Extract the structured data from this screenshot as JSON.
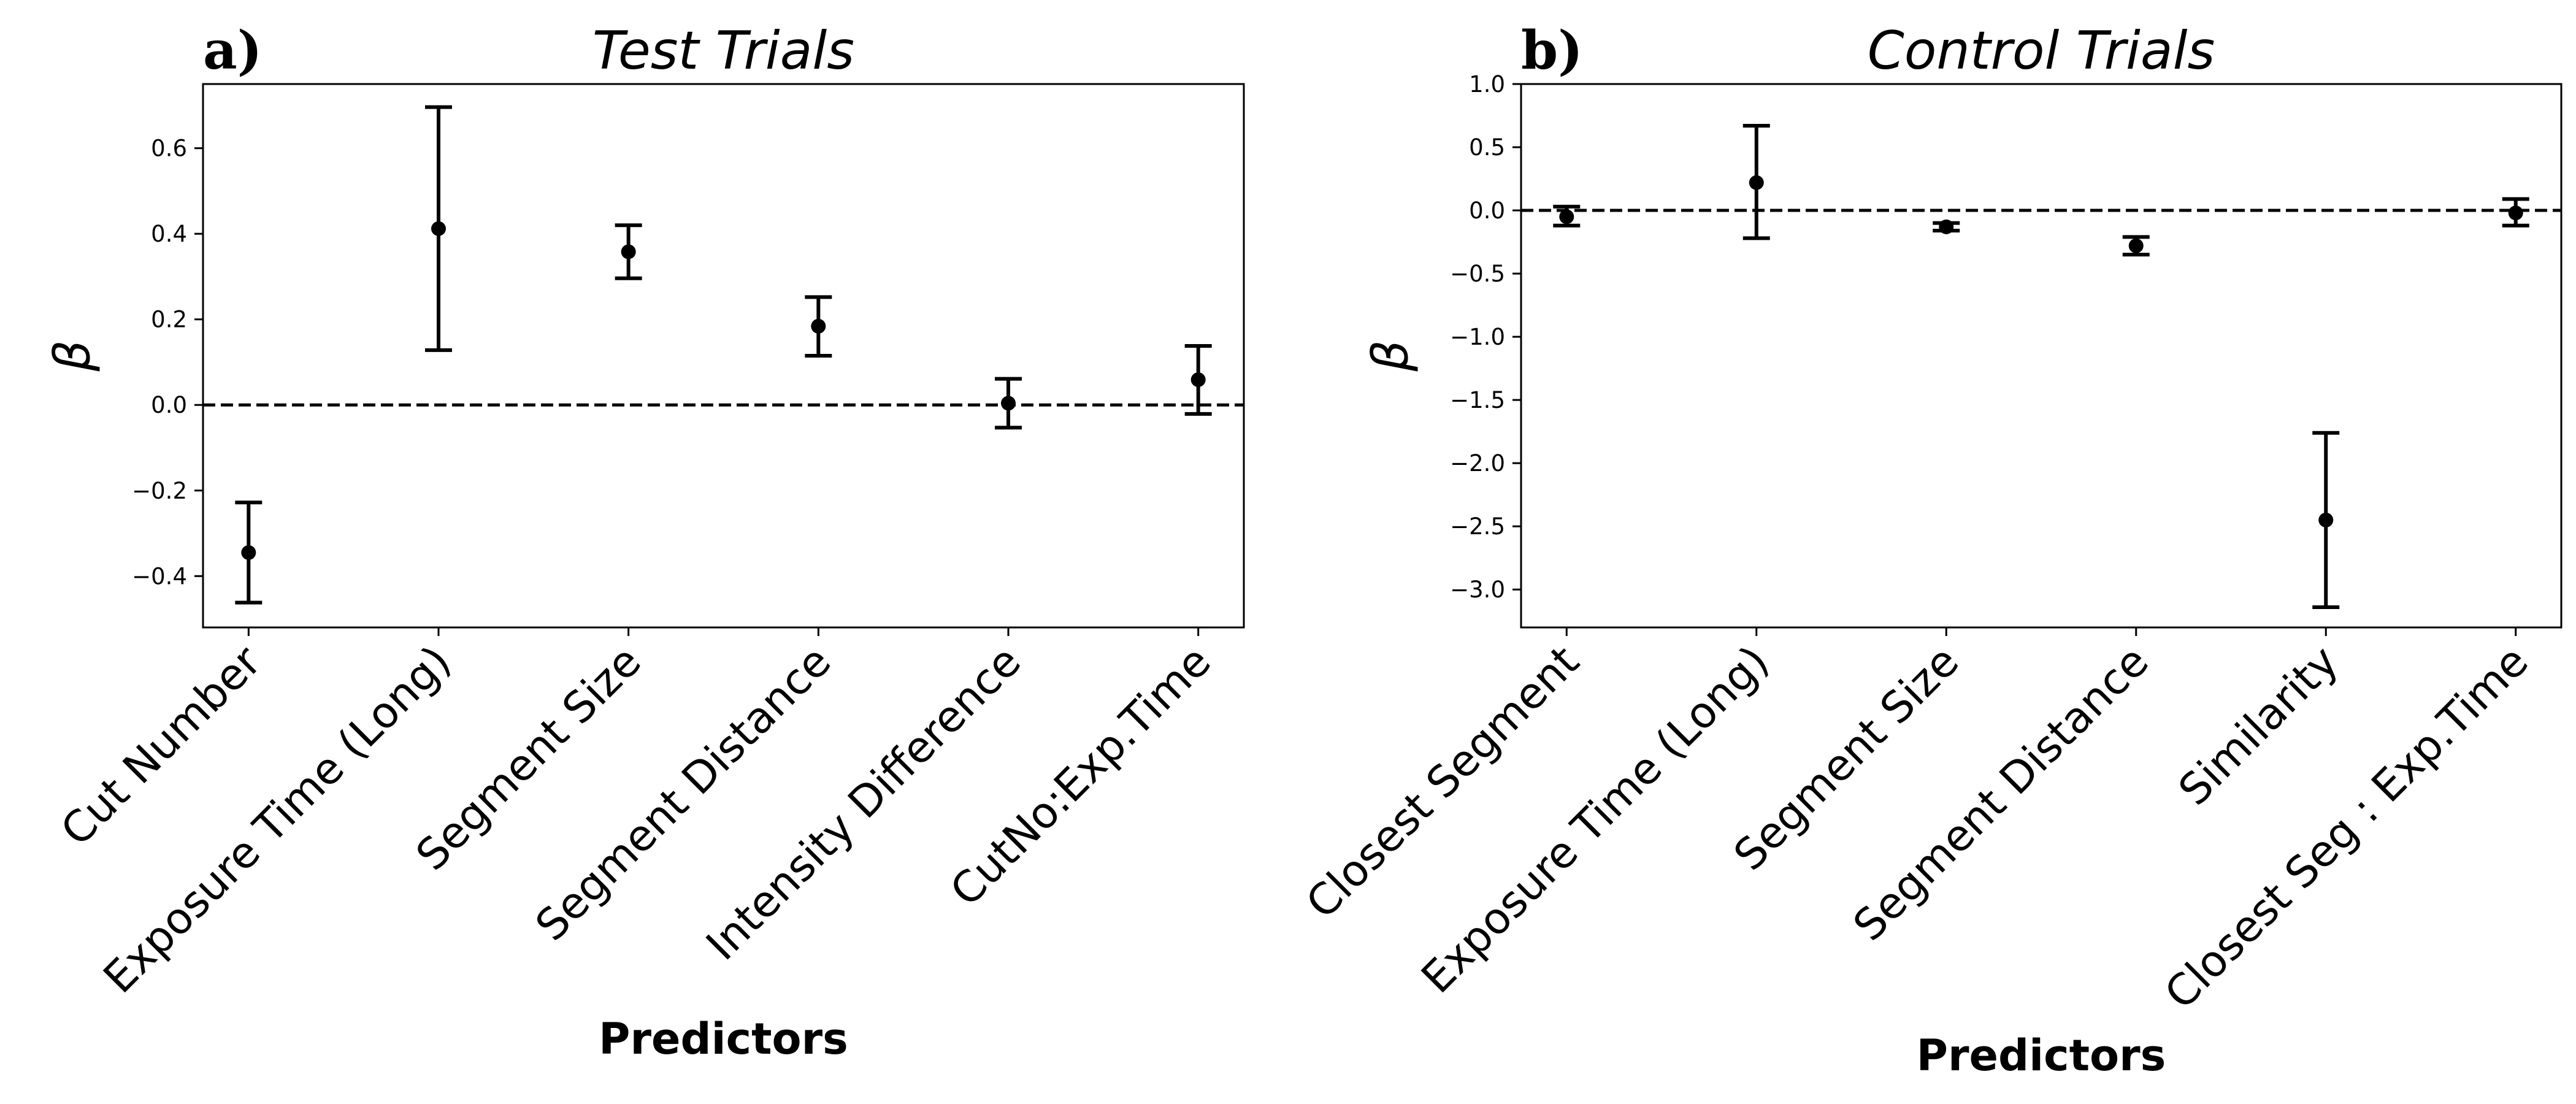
{
  "chart_data": [
    {
      "type": "errorbar",
      "panel_label": "a)",
      "title": "Test Trials",
      "xlabel": "Predictors",
      "ylabel": "β",
      "ylim": [
        -0.52,
        0.75
      ],
      "yticks": [
        -0.4,
        -0.2,
        0.0,
        0.2,
        0.4,
        0.6
      ],
      "ytick_labels": [
        "−0.4",
        "−0.2",
        "0.0",
        "0.2",
        "0.4",
        "0.6"
      ],
      "reference_line": 0.0,
      "categories": [
        "Cut Number",
        "Exposure Time (Long)",
        "Segment Size",
        "Segment Distance",
        "Intensity Difference",
        "CutNo:Exp.Time"
      ],
      "values": [
        -0.345,
        0.412,
        0.358,
        0.184,
        0.004,
        0.059
      ],
      "lower": [
        -0.462,
        0.128,
        0.296,
        0.115,
        -0.053,
        -0.021
      ],
      "upper": [
        -0.228,
        0.696,
        0.42,
        0.252,
        0.061,
        0.138
      ],
      "grid": false
    },
    {
      "type": "errorbar",
      "panel_label": "b)",
      "title": "Control Trials",
      "xlabel": "Predictors",
      "ylabel": "β",
      "ylim": [
        -3.3,
        1.0
      ],
      "yticks": [
        -3.0,
        -2.5,
        -2.0,
        -1.5,
        -1.0,
        -0.5,
        0.0,
        0.5,
        1.0
      ],
      "ytick_labels": [
        "−3.0",
        "−2.5",
        "−2.0",
        "−1.5",
        "−1.0",
        "−0.5",
        "0.0",
        "0.5",
        "1.0"
      ],
      "reference_line": 0.0,
      "categories": [
        "Closest Segment",
        "Exposure Time (Long)",
        "Segment Size",
        "Segment Distance",
        "Similarity",
        "Closest Seg : Exp.Time"
      ],
      "values": [
        -0.05,
        0.22,
        -0.13,
        -0.28,
        -2.45,
        -0.02
      ],
      "lower": [
        -0.12,
        -0.22,
        -0.16,
        -0.35,
        -3.14,
        -0.12
      ],
      "upper": [
        0.03,
        0.67,
        -0.1,
        -0.21,
        -1.76,
        0.09
      ],
      "grid": false
    }
  ]
}
